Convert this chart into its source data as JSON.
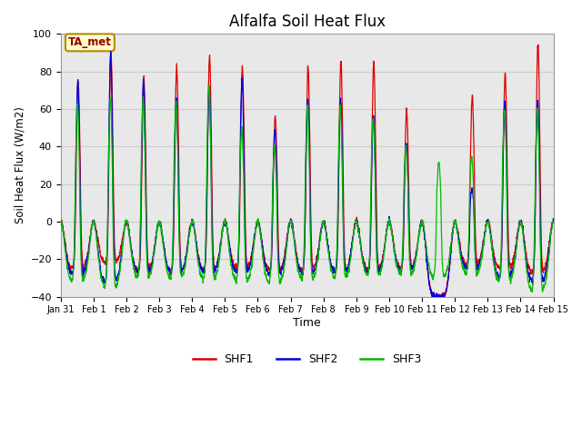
{
  "title": "Alfalfa Soil Heat Flux",
  "ylabel": "Soil Heat Flux (W/m2)",
  "xlabel": "Time",
  "ylim": [
    -40,
    100
  ],
  "xlim": [
    0,
    15
  ],
  "annotation_text": "TA_met",
  "annotation_bg": "#ffffcc",
  "annotation_border": "#bb8800",
  "grid_color": "#cccccc",
  "bg_color": "#e8e8e8",
  "series_colors": [
    "#dd0000",
    "#0000dd",
    "#00bb00"
  ],
  "series_labels": [
    "SHF1",
    "SHF2",
    "SHF3"
  ],
  "x_tick_labels": [
    "Jan 31",
    "Feb 1",
    "Feb 2",
    "Feb 3",
    "Feb 4",
    "Feb 5",
    "Feb 6",
    "Feb 7",
    "Feb 8",
    "Feb 9",
    "Feb 10",
    "Feb 11",
    "Feb 12",
    "Feb 13",
    "Feb 14",
    "Feb 15"
  ],
  "n_days": 15,
  "pts_per_day": 144,
  "day_peaks_shf1": [
    75,
    90,
    77,
    83,
    88,
    83,
    56,
    83,
    86,
    85,
    60,
    0,
    67,
    79,
    95
  ],
  "day_peaks_shf2": [
    75,
    90,
    75,
    66,
    72,
    77,
    50,
    65,
    65,
    57,
    42,
    0,
    17,
    65,
    65
  ],
  "day_peaks_shf3": [
    62,
    65,
    65,
    64,
    73,
    50,
    40,
    62,
    62,
    55,
    40,
    32,
    35,
    60,
    60
  ],
  "night_shf1": [
    -25,
    -22,
    -27,
    -27,
    -26,
    -25,
    -26,
    -26,
    -27,
    -26,
    -25,
    -40,
    -23,
    -25,
    -27
  ],
  "night_shf2": [
    -28,
    -32,
    -27,
    -27,
    -27,
    -27,
    -28,
    -28,
    -27,
    -27,
    -26,
    -40,
    -25,
    -30,
    -32
  ],
  "night_shf3": [
    -32,
    -35,
    -30,
    -30,
    -31,
    -32,
    -33,
    -31,
    -30,
    -29,
    -28,
    -30,
    -28,
    -32,
    -37
  ]
}
